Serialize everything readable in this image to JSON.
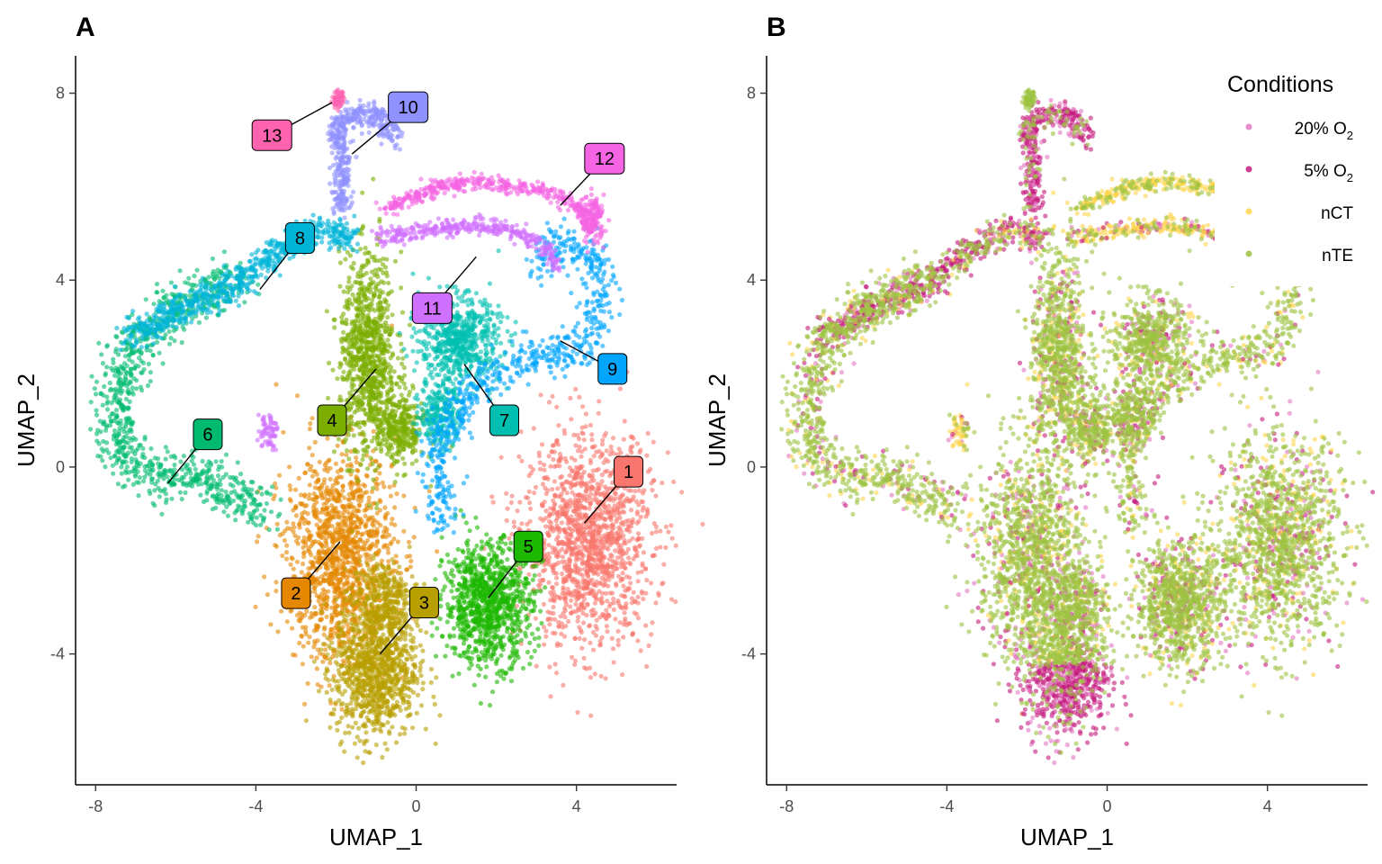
{
  "chart_data": [
    {
      "type": "scatter",
      "panel": "A",
      "xlabel": "UMAP_1",
      "ylabel": "UMAP_2",
      "xlim": [
        -8.5,
        6.5
      ],
      "ylim": [
        -6.8,
        8.8
      ],
      "xticks": [
        -8,
        -4,
        0,
        4
      ],
      "yticks": [
        -4,
        0,
        4,
        8
      ],
      "clusters": [
        {
          "name": "1",
          "color": "#F8766D",
          "label_x": 5.3,
          "label_y": -0.1,
          "anchor_x": 4.2,
          "anchor_y": -1.2
        },
        {
          "name": "2",
          "color": "#E58700",
          "label_x": -3.0,
          "label_y": -2.7,
          "anchor_x": -1.9,
          "anchor_y": -1.6
        },
        {
          "name": "3",
          "color": "#B79F00",
          "label_x": 0.2,
          "label_y": -2.9,
          "anchor_x": -0.9,
          "anchor_y": -4.0
        },
        {
          "name": "4",
          "color": "#7CAE00",
          "label_x": -2.1,
          "label_y": 1.0,
          "anchor_x": -1.0,
          "anchor_y": 2.1
        },
        {
          "name": "5",
          "color": "#1DB800",
          "label_x": 2.8,
          "label_y": -1.7,
          "anchor_x": 1.8,
          "anchor_y": -2.8
        },
        {
          "name": "6",
          "color": "#00BA6F",
          "label_x": -5.2,
          "label_y": 0.7,
          "anchor_x": -6.2,
          "anchor_y": -0.35
        },
        {
          "name": "7",
          "color": "#00BFB0",
          "label_x": 2.2,
          "label_y": 1.0,
          "anchor_x": 1.2,
          "anchor_y": 2.2
        },
        {
          "name": "8",
          "color": "#00B4D8",
          "label_x": -2.9,
          "label_y": 4.9,
          "anchor_x": -3.9,
          "anchor_y": 3.8
        },
        {
          "name": "9",
          "color": "#00A5FF",
          "label_x": 4.9,
          "label_y": 2.1,
          "anchor_x": 3.6,
          "anchor_y": 2.7
        },
        {
          "name": "10",
          "color": "#8F91FF",
          "label_x": -0.2,
          "label_y": 7.7,
          "anchor_x": -1.6,
          "anchor_y": 6.7
        },
        {
          "name": "11",
          "color": "#D070FF",
          "label_x": 0.4,
          "label_y": 3.4,
          "anchor_x": 1.5,
          "anchor_y": 4.5
        },
        {
          "name": "12",
          "color": "#F564E3",
          "label_x": 4.7,
          "label_y": 6.6,
          "anchor_x": 3.6,
          "anchor_y": 5.6
        },
        {
          "name": "13",
          "color": "#FF63B0",
          "label_x": -3.6,
          "label_y": 7.1,
          "anchor_x": -2.1,
          "anchor_y": 7.8
        }
      ]
    },
    {
      "type": "scatter",
      "panel": "B",
      "xlabel": "UMAP_1",
      "ylabel": "UMAP_2",
      "xlim": [
        -8.5,
        6.5
      ],
      "ylim": [
        -6.8,
        8.8
      ],
      "xticks": [
        -8,
        -4,
        0,
        4
      ],
      "yticks": [
        -4,
        0,
        4,
        8
      ],
      "legend": {
        "title": "Conditions",
        "placement": "top-right",
        "entries": [
          {
            "label": "20% O",
            "sub": "2",
            "color": "#E377C2"
          },
          {
            "label": "5% O",
            "sub": "2",
            "color": "#C51B7D"
          },
          {
            "label": "nCT",
            "sub": "",
            "color": "#FFD54F"
          },
          {
            "label": "nTE",
            "sub": "",
            "color": "#9DC341"
          }
        ]
      }
    }
  ]
}
